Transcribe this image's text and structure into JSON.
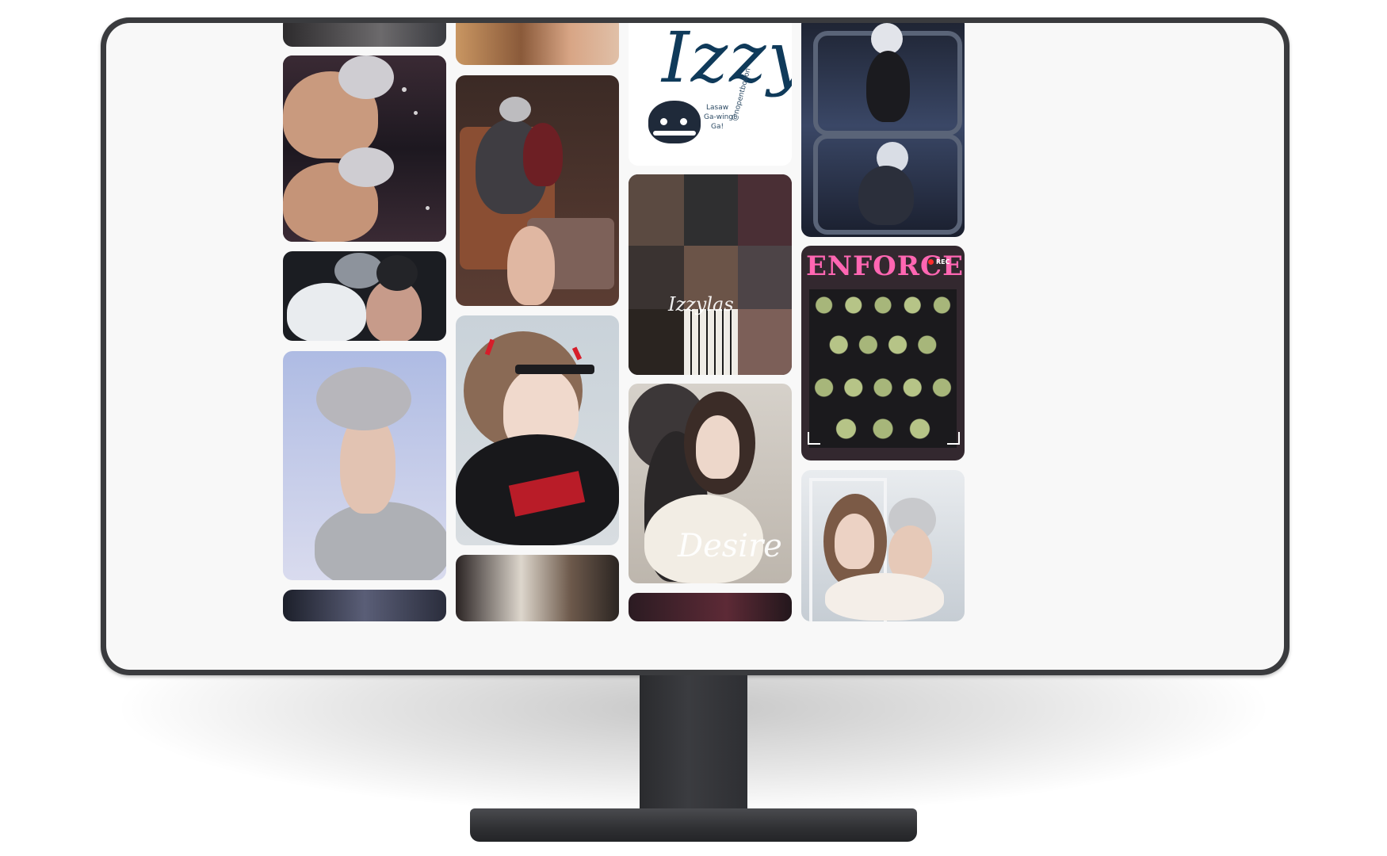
{
  "colors": {
    "monitor_frame": "#3a3b3e",
    "screen_bg": "#f8f8f8",
    "izzy_ink": "#0f3a5a"
  },
  "pins": {
    "izzy_card": {
      "title": "Izzy",
      "chat_text_1": "Lasaw",
      "chat_text_2": "Ga-wing!",
      "chat_text_3": "Ga!",
      "signature": "@nopentbooon"
    },
    "moodboard": {
      "script_text": "Izzylas"
    },
    "desire_card": {
      "script_text": "Desire"
    },
    "enforcers_card": {
      "title": "ENFORCERS",
      "rec_badge": "REC"
    }
  },
  "icons": [
    "rec-dot-icon",
    "mascot-icon"
  ]
}
